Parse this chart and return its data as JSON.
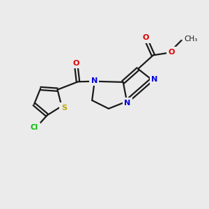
{
  "bg_color": "#ebebeb",
  "bond_color": "#1a1a1a",
  "bond_lw": 1.6,
  "atom_colors": {
    "Cl": "#00bb00",
    "S": "#bbaa00",
    "O": "#dd0000",
    "N": "#0000dd",
    "C": "#1a1a1a"
  },
  "fs": 8.0,
  "xlim": [
    0,
    10
  ],
  "ylim": [
    0,
    10
  ],
  "figsize": [
    3.0,
    3.0
  ],
  "dpi": 100
}
